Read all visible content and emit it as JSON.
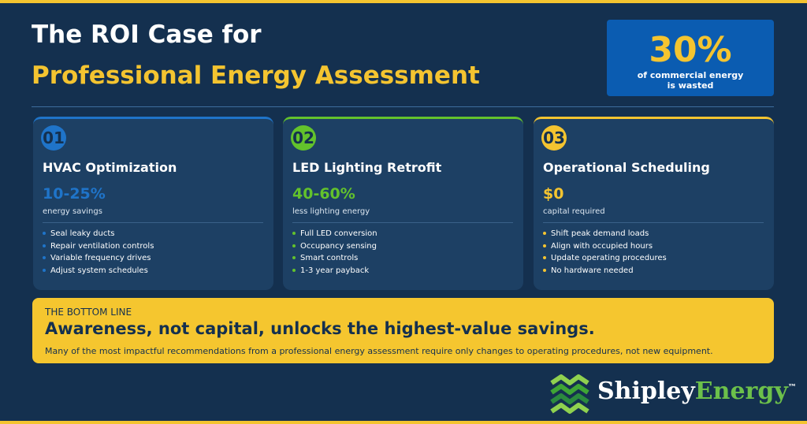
{
  "header": {
    "title_line1": "The ROI Case for",
    "title_line2": "Professional Energy Assessment"
  },
  "stat": {
    "value": "30%",
    "caption_line1": "of commercial energy",
    "caption_line2": "is wasted"
  },
  "cards": [
    {
      "number": "01",
      "title": "HVAC Optimization",
      "stat": "10-25%",
      "stat_label": "energy savings",
      "color": "#1f74c9",
      "bullets": [
        "Seal leaky ducts",
        "Repair ventilation controls",
        "Variable frequency drives",
        "Adjust system schedules"
      ]
    },
    {
      "number": "02",
      "title": "LED Lighting Retrofit",
      "stat": "40-60%",
      "stat_label": "less lighting energy",
      "color": "#63c22c",
      "bullets": [
        "Full LED conversion",
        "Occupancy sensing",
        "Smart controls",
        "1-3 year payback"
      ]
    },
    {
      "number": "03",
      "title": "Operational Scheduling",
      "stat": "$0",
      "stat_label": "capital required",
      "color": "#f4c430",
      "bullets": [
        "Shift peak demand loads",
        "Align with occupied hours",
        "Update operating procedures",
        "No hardware needed"
      ]
    }
  ],
  "bottom_line": {
    "label": "THE BOTTOM LINE",
    "headline": "Awareness, not capital, unlocks the highest-value savings.",
    "body": "Many of the most impactful recommendations from a professional energy assessment require only changes to operating procedures, not new equipment."
  },
  "logo": {
    "name1": "Shipley",
    "name2": "Energy",
    "mark": "™"
  }
}
